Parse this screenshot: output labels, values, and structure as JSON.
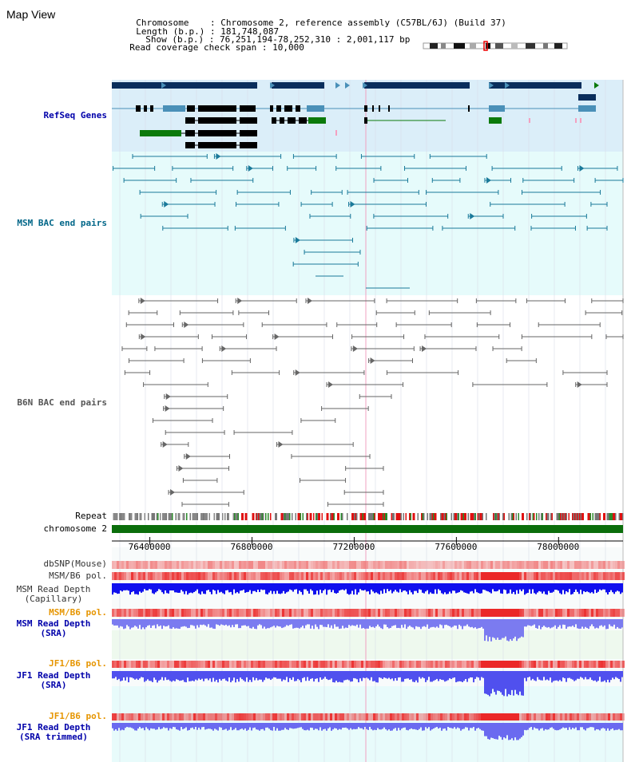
{
  "app": {
    "title": "Map View"
  },
  "info": {
    "chromosome_label": "Chromosome",
    "chromosome_value": "Chromosome 2, reference assembly (C57BL/6J) (Build 37)",
    "length_label": "Length (b.p.)",
    "length_value": "181,748,087",
    "show_label": "Show (b.p.)",
    "show_value": "76,251,194-78,252,310 : 2,001,117 bp",
    "coverage_label": "Read coverage check span",
    "coverage_value": "10,000"
  },
  "tracks": {
    "refseq": "RefSeq Genes",
    "msm_bac": "MSM BAC end pairs",
    "b6n_bac": "B6N BAC end pairs",
    "repeat": "Repeat",
    "chromosome": "chromosome 2",
    "dbsnp": "dbSNP(Mouse)",
    "msm_b6_pol": "MSM/B6 pol.",
    "msm_depth_cap_1": "MSM Read Depth",
    "msm_depth_cap_2": "(Capillary)",
    "msm_b6_pol2": "MSM/B6 pol.",
    "msm_depth_sra_1": "MSM Read Depth",
    "msm_depth_sra_2": "(SRA)",
    "jf1_b6_pol": "JF1/B6 pol.",
    "jf1_depth_sra_1": "JF1 Read Depth",
    "jf1_depth_sra_2": "(SRA)",
    "jf1_b6_pol2": "JF1/B6 pol.",
    "jf1_depth_trim_1": "JF1 Read Depth",
    "jf1_depth_trim_2": "(SRA trimmed)"
  },
  "axis": {
    "ticks": [
      {
        "pos": 76400000,
        "label": "76400000"
      },
      {
        "pos": 76800000,
        "label": "76800000"
      },
      {
        "pos": 77200000,
        "label": "77200000"
      },
      {
        "pos": 77600000,
        "label": "77600000"
      },
      {
        "pos": 78000000,
        "label": "78000000"
      }
    ],
    "view_start": 76251194,
    "view_end": 78252310
  },
  "colors": {
    "refseq_bg": "#dbeef9",
    "msm_bg": "#e6fbfb",
    "gene_dark": "#0a2e5c",
    "gene_mid": "#4a90b8",
    "gene_green": "#0b7a0b",
    "chromosome": "#0b6e0b",
    "depth_blue": "#1010ee",
    "depth_light": "#7b7bf0",
    "pol_red": "#f05050",
    "snp_pink": "#f5a0a0",
    "label_blue": "#0000aa",
    "label_orange": "#e69500",
    "label_teal": "#006688"
  }
}
